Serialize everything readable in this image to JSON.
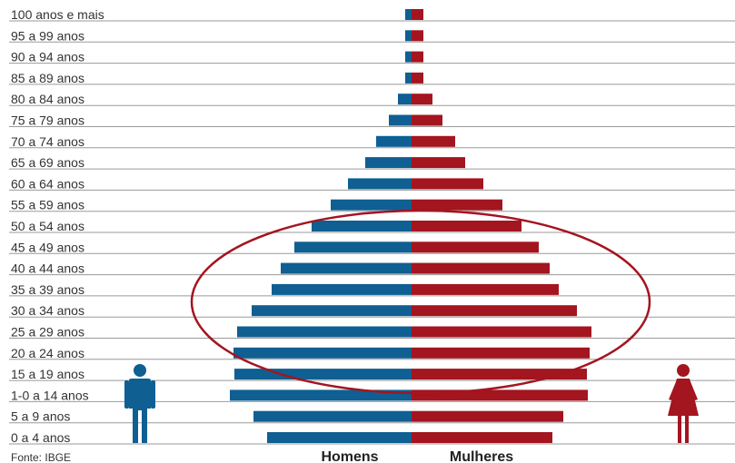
{
  "chart_data": {
    "type": "bar",
    "subtype": "population-pyramid",
    "categories": [
      "100 anos e mais",
      "95 a 99 anos",
      "90 a 94 anos",
      "85 a 89 anos",
      "80 a 84 anos",
      "75 a 79 anos",
      "70 a 74 anos",
      "65 a 69 anos",
      "60 a 64 anos",
      "55 a 59 anos",
      "50 a 54 anos",
      "45 a 49 anos",
      "40 a 44 anos",
      "35 a 39 anos",
      "30 a 34 anos",
      "25 a 29 anos",
      "20 a 24 anos",
      "15 a 19 anos",
      "1-0 a 14 anos",
      "5 a 9 anos",
      "0 a 4 anos"
    ],
    "series": [
      {
        "name": "Homens",
        "color": "#0f5f92",
        "values": [
          7,
          7,
          7,
          7,
          15,
          25,
          39,
          51,
          70,
          89,
          110,
          129,
          144,
          154,
          176,
          192,
          196,
          195,
          200,
          174,
          159
        ]
      },
      {
        "name": "Mulheres",
        "color": "#a3151f",
        "values": [
          13,
          13,
          13,
          13,
          23,
          34,
          48,
          59,
          79,
          100,
          121,
          140,
          152,
          162,
          182,
          198,
          196,
          193,
          194,
          167,
          155
        ]
      }
    ],
    "xlabel_left": "Homens",
    "xlabel_right": "Mulheres",
    "source": "Fonte: IBGE",
    "highlight": {
      "shape": "ellipse",
      "color": "#a3151f",
      "from_category": "50 a 54 anos",
      "to_category": "15 a 19 anos"
    },
    "icons": [
      "man-icon",
      "woman-icon"
    ]
  }
}
